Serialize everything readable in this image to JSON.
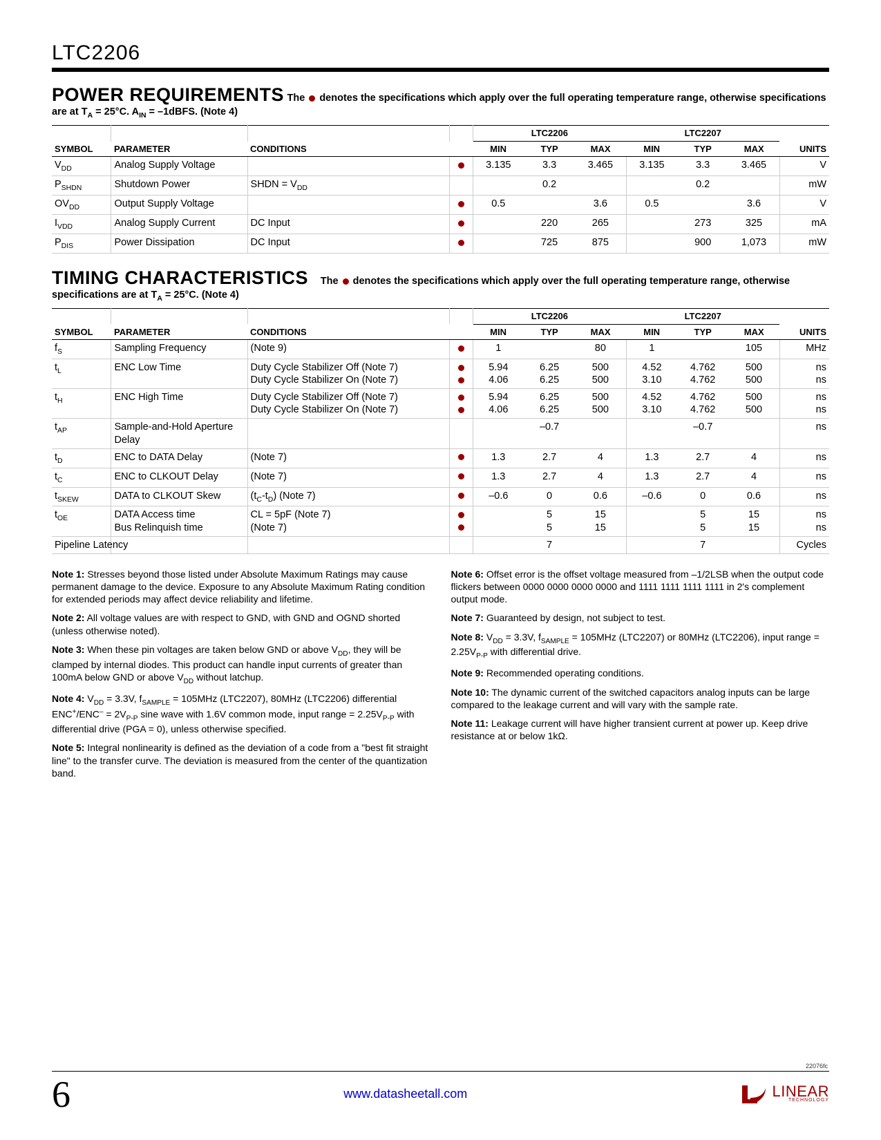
{
  "header": {
    "part": "LTC2206"
  },
  "sec1": {
    "title": "POWER REQUIREMENTS",
    "desc_a": "The ",
    "desc_b": " denotes the specifications which apply over the full operating temperature range, otherwise specifications are at T",
    "desc_c": " = 25°C. A",
    "desc_d": " = –1dBFS. (Note 4)",
    "sub1": "A",
    "sub2": "IN",
    "cols": {
      "sym": "SYMBOL",
      "par": "PARAMETER",
      "cond": "CONDITIONS",
      "g1": "LTC2206",
      "g2": "LTC2207",
      "min": "MIN",
      "typ": "TYP",
      "max": "MAX",
      "units": "UNITS"
    },
    "rows": [
      {
        "sym_pre": "V",
        "sym_sub": "DD",
        "par": "Analog Supply Voltage",
        "cond": "",
        "dot": true,
        "a": [
          "3.135",
          "3.3",
          "3.465"
        ],
        "b": [
          "3.135",
          "3.3",
          "3.465"
        ],
        "u": "V"
      },
      {
        "sym_pre": "P",
        "sym_sub": "SHDN",
        "par": "Shutdown Power",
        "cond_pre": "SHDN = V",
        "cond_sub": "DD",
        "dot": false,
        "a": [
          "",
          "0.2",
          ""
        ],
        "b": [
          "",
          "0.2",
          ""
        ],
        "u": "mW"
      },
      {
        "sym_pre": "OV",
        "sym_sub": "DD",
        "par": "Output Supply Voltage",
        "cond": "",
        "dot": true,
        "a": [
          "0.5",
          "",
          "3.6"
        ],
        "b": [
          "0.5",
          "",
          "3.6"
        ],
        "u": "V"
      },
      {
        "sym_pre": "I",
        "sym_sub": "VDD",
        "par": "Analog Supply Current",
        "cond": "DC Input",
        "dot": true,
        "a": [
          "",
          "220",
          "265"
        ],
        "b": [
          "",
          "273",
          "325"
        ],
        "u": "mA"
      },
      {
        "sym_pre": "P",
        "sym_sub": "DIS",
        "par": "Power Dissipation",
        "cond": "DC Input",
        "dot": true,
        "a": [
          "",
          "725",
          "875"
        ],
        "b": [
          "",
          "900",
          "1,073"
        ],
        "u": "mW"
      }
    ]
  },
  "sec2": {
    "title": "TIMING CHARACTERISTICS",
    "desc_a": "The ",
    "desc_b": " denotes the specifications which apply over the full operating temperature range, otherwise specifications are at T",
    "desc_c": " = 25°C. (Note 4)",
    "sub1": "A",
    "cols": {
      "sym": "SYMBOL",
      "par": "PARAMETER",
      "cond": "CONDITIONS",
      "g1": "LTC2206",
      "g2": "LTC2207",
      "min": "MIN",
      "typ": "TYP",
      "max": "MAX",
      "units": "UNITS"
    },
    "rows": [
      {
        "sym_pre": "f",
        "sym_sub": "S",
        "par": "Sampling Frequency",
        "cond": "(Note 9)",
        "dot": [
          true
        ],
        "a": [
          "1",
          "",
          "80"
        ],
        "b": [
          "1",
          "",
          "105"
        ],
        "u": "MHz"
      },
      {
        "sym_pre": "t",
        "sym_sub": "L",
        "par": "ENC Low Time",
        "cond": "Duty Cycle Stabilizer Off (Note 7)\nDuty Cycle Stabilizer On (Note 7)",
        "dot": [
          true,
          true
        ],
        "a": [
          "5.94\n4.06",
          "6.25\n6.25",
          "500\n500"
        ],
        "b": [
          "4.52\n3.10",
          "4.762\n4.762",
          "500\n500"
        ],
        "u": "ns\nns"
      },
      {
        "sym_pre": "t",
        "sym_sub": "H",
        "par": "ENC High Time",
        "cond": "Duty Cycle Stabilizer Off (Note 7)\nDuty Cycle Stabilizer On (Note 7)",
        "dot": [
          true,
          true
        ],
        "a": [
          "5.94\n4.06",
          "6.25\n6.25",
          "500\n500"
        ],
        "b": [
          "4.52\n3.10",
          "4.762\n4.762",
          "500\n500"
        ],
        "u": "ns\nns"
      },
      {
        "sym_pre": "t",
        "sym_sub": "AP",
        "par": "Sample-and-Hold Aperture Delay",
        "cond": "",
        "dot": [
          false
        ],
        "a": [
          "",
          "–0.7",
          ""
        ],
        "b": [
          "",
          "–0.7",
          ""
        ],
        "u": "ns"
      },
      {
        "sym_pre": "t",
        "sym_sub": "D",
        "par": "ENC to DATA Delay",
        "cond": "(Note 7)",
        "dot": [
          true
        ],
        "a": [
          "1.3",
          "2.7",
          "4"
        ],
        "b": [
          "1.3",
          "2.7",
          "4"
        ],
        "u": "ns"
      },
      {
        "sym_pre": "t",
        "sym_sub": "C",
        "par": "ENC to CLKOUT Delay",
        "cond": "(Note 7)",
        "dot": [
          true
        ],
        "a": [
          "1.3",
          "2.7",
          "4"
        ],
        "b": [
          "1.3",
          "2.7",
          "4"
        ],
        "u": "ns"
      },
      {
        "sym_pre": "t",
        "sym_sub": "SKEW",
        "par": "DATA to CLKOUT Skew",
        "cond_html": "(t<sub>C</sub>-t<sub>D</sub>) (Note 7)",
        "dot": [
          true
        ],
        "a": [
          "–0.6",
          "0",
          "0.6"
        ],
        "b": [
          "–0.6",
          "0",
          "0.6"
        ],
        "u": "ns"
      },
      {
        "sym_pre": "t",
        "sym_sub": "OE",
        "par": "DATA Access time\nBus Relinquish time",
        "cond": "CL = 5pF (Note 7)\n(Note 7)",
        "dot": [
          true,
          true
        ],
        "a": [
          "",
          "5\n5",
          "15\n15"
        ],
        "b": [
          "",
          "5\n5",
          "15\n15"
        ],
        "u": "ns\nns"
      },
      {
        "sym_pre": "Pipeline Latency",
        "sym_sub": "",
        "par": "",
        "cond": "",
        "dot": [
          false
        ],
        "a": [
          "",
          "7",
          ""
        ],
        "b": [
          "",
          "7",
          ""
        ],
        "u": "Cycles"
      }
    ]
  },
  "notes": {
    "left": [
      "<b>Note 1:</b> Stresses beyond those listed under Absolute Maximum Ratings may cause permanent damage to the device. Exposure to any Absolute Maximum Rating condition for extended periods may affect device reliability and lifetime.",
      "<b>Note 2:</b> All voltage values are with respect to GND, with GND and OGND shorted (unless otherwise noted).",
      "<b>Note 3:</b> When these pin voltages are taken below GND or above V<sub>DD</sub>, they will be clamped by internal diodes. This product can handle input currents of greater than 100mA below GND or above V<sub>DD</sub> without latchup.",
      "<b>Note 4:</b> V<sub>DD</sub> = 3.3V, f<sub>SAMPLE</sub> = 105MHz (LTC2207), 80MHz (LTC2206) differential ENC<sup>+</sup>/ENC<sup>–</sup> = 2V<sub>P-P</sub> sine wave with 1.6V common mode, input range = 2.25V<sub>P-P</sub> with differential drive (PGA = 0), unless otherwise specified.",
      "<b>Note 5:</b> Integral nonlinearity is defined as the deviation of a code from a \"best fit straight line\" to the transfer curve. The deviation is measured from the center of the quantization band."
    ],
    "right": [
      "<b>Note 6:</b> Offset error is the offset voltage measured from –1/2LSB when the output code flickers between 0000 0000 0000 0000 and 1111 1111 1111 1111 in 2's complement output mode.",
      "<b>Note 7:</b> Guaranteed by design, not subject to test.",
      "<b>Note 8:</b> V<sub>DD</sub> = 3.3V, f<sub>SAMPLE</sub> = 105MHz (LTC2207) or 80MHz (LTC2206), input range = 2.25V<sub>P-P</sub> with differential drive.",
      "<b>Note 9:</b> Recommended operating conditions.",
      "<b>Note 10:</b> The dynamic current of the switched capacitors analog inputs can be large compared to the leakage current and will vary with the sample rate.",
      "<b>Note 11:</b> Leakage current will have higher transient current at power up. Keep drive resistance at or below 1kΩ."
    ]
  },
  "footer": {
    "code": "22076fc",
    "page": "6",
    "url": "www.datasheetall.com",
    "brand": "LINEAR",
    "brand_sub": "TECHNOLOGY"
  }
}
